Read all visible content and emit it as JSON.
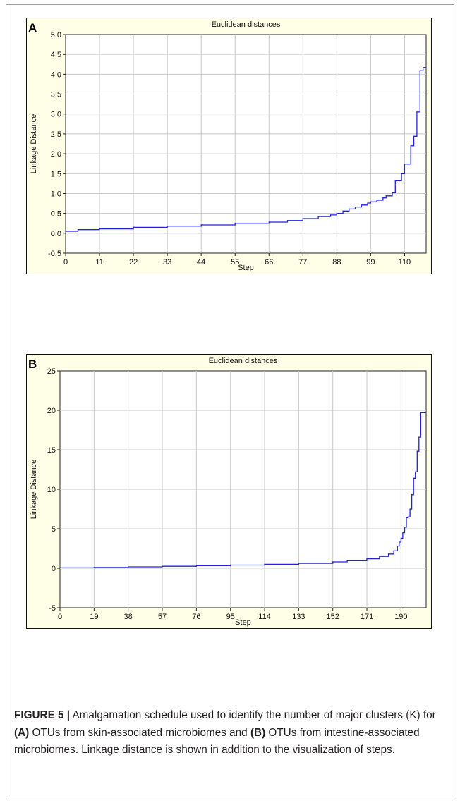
{
  "chart_data": [
    {
      "panel_label": "A",
      "type": "line",
      "line_style": "step",
      "title": "Euclidean distances",
      "xlabel": "Step",
      "ylabel": "Linkage Distance",
      "xlim": [
        0,
        117
      ],
      "ylim": [
        -0.5,
        5.0
      ],
      "xticks": [
        0,
        11,
        22,
        33,
        44,
        55,
        66,
        77,
        88,
        99,
        110
      ],
      "yticks": [
        -0.5,
        0.0,
        0.5,
        1.0,
        1.5,
        2.0,
        2.5,
        3.0,
        3.5,
        4.0,
        4.5,
        5.0
      ],
      "ytick_labels": [
        "-0.5",
        "0.0",
        "0.5",
        "1.0",
        "1.5",
        "2.0",
        "2.5",
        "3.0",
        "3.5",
        "4.0",
        "4.5",
        "5.0"
      ],
      "grid": true,
      "series_color": "#2222dd",
      "x": [
        0,
        4,
        11,
        22,
        33,
        44,
        55,
        66,
        72,
        77,
        82,
        86,
        88,
        90,
        92,
        94,
        96,
        98,
        99,
        101,
        103,
        104,
        106,
        107,
        109,
        110,
        112,
        113,
        114,
        115,
        116,
        117
      ],
      "y": [
        0.05,
        0.09,
        0.11,
        0.15,
        0.18,
        0.21,
        0.25,
        0.28,
        0.32,
        0.37,
        0.42,
        0.46,
        0.5,
        0.56,
        0.61,
        0.66,
        0.71,
        0.76,
        0.79,
        0.83,
        0.89,
        0.94,
        1.02,
        1.32,
        1.5,
        1.74,
        2.2,
        2.44,
        3.05,
        4.09,
        4.17,
        4.17
      ]
    },
    {
      "panel_label": "B",
      "type": "line",
      "line_style": "step",
      "title": "Euclidean distances",
      "xlabel": "Step",
      "ylabel": "Linkage Distance",
      "xlim": [
        0,
        204
      ],
      "ylim": [
        -5,
        25
      ],
      "xticks": [
        0,
        19,
        38,
        57,
        76,
        95,
        114,
        133,
        152,
        171,
        190
      ],
      "yticks": [
        -5,
        0,
        5,
        10,
        15,
        20,
        25
      ],
      "ytick_labels": [
        "-5",
        "0",
        "5",
        "10",
        "15",
        "20",
        "25"
      ],
      "grid": true,
      "series_color": "#2222dd",
      "x": [
        0,
        19,
        38,
        57,
        76,
        95,
        114,
        133,
        152,
        160,
        171,
        178,
        183,
        186,
        188,
        189,
        190,
        191,
        192,
        193,
        194,
        195,
        196,
        197,
        198,
        199,
        200,
        201,
        202,
        203,
        204
      ],
      "y": [
        0.05,
        0.1,
        0.18,
        0.25,
        0.32,
        0.4,
        0.5,
        0.62,
        0.8,
        0.95,
        1.2,
        1.5,
        1.8,
        2.2,
        2.8,
        3.3,
        3.8,
        4.5,
        5.2,
        6.4,
        6.5,
        7.5,
        9.3,
        11.4,
        12.2,
        14.8,
        16.6,
        19.7,
        19.7,
        19.7,
        19.7
      ]
    }
  ],
  "caption": {
    "figure_label": "FIGURE 5 |",
    "text_1": " Amalgamation schedule used to identify the number of major clusters (K) for ",
    "bold_a": "(A)",
    "text_2": " OTUs from skin-associated microbiomes and ",
    "bold_b": "(B)",
    "text_3": " OTUs from intestine-associated microbiomes. Linkage distance is shown in addition to the visualization of steps."
  }
}
